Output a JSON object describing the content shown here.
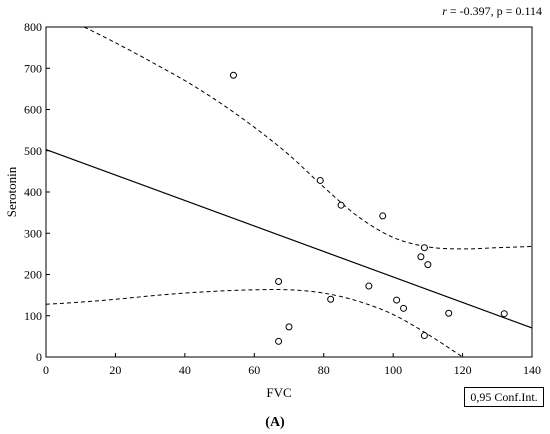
{
  "annotation": {
    "r_symbol": "r",
    "stat_text": " = -0.397, p = 0.114"
  },
  "legend_box": "0,95 Conf.Int.",
  "panel_label": "(A)",
  "chart_data": {
    "type": "scatter",
    "title": "",
    "xlabel": "FVC",
    "ylabel": "Serotonin",
    "xlim": [
      0,
      140
    ],
    "ylim": [
      0,
      800
    ],
    "xticks": [
      0,
      20,
      40,
      60,
      80,
      100,
      120,
      140
    ],
    "yticks": [
      0,
      100,
      200,
      300,
      400,
      500,
      600,
      700,
      800
    ],
    "grid": false,
    "points": [
      {
        "x": 54,
        "y": 683
      },
      {
        "x": 79,
        "y": 428
      },
      {
        "x": 85,
        "y": 368
      },
      {
        "x": 97,
        "y": 342
      },
      {
        "x": 109,
        "y": 265
      },
      {
        "x": 108,
        "y": 243
      },
      {
        "x": 110,
        "y": 224
      },
      {
        "x": 67,
        "y": 183
      },
      {
        "x": 93,
        "y": 172
      },
      {
        "x": 82,
        "y": 140
      },
      {
        "x": 101,
        "y": 138
      },
      {
        "x": 103,
        "y": 118
      },
      {
        "x": 116,
        "y": 106
      },
      {
        "x": 132,
        "y": 105
      },
      {
        "x": 70,
        "y": 73
      },
      {
        "x": 109,
        "y": 52
      },
      {
        "x": 67,
        "y": 38
      }
    ],
    "regression": {
      "intercept": 503,
      "slope": -3.09
    },
    "ci_upper": [
      {
        "x": 11,
        "y": 800
      },
      {
        "x": 20,
        "y": 762
      },
      {
        "x": 30,
        "y": 717
      },
      {
        "x": 40,
        "y": 670
      },
      {
        "x": 50,
        "y": 617
      },
      {
        "x": 60,
        "y": 557
      },
      {
        "x": 70,
        "y": 490
      },
      {
        "x": 80,
        "y": 412
      },
      {
        "x": 90,
        "y": 340
      },
      {
        "x": 100,
        "y": 290
      },
      {
        "x": 110,
        "y": 267
      },
      {
        "x": 120,
        "y": 262
      },
      {
        "x": 130,
        "y": 265
      },
      {
        "x": 140,
        "y": 268
      }
    ],
    "ci_lower": [
      {
        "x": 0,
        "y": 128
      },
      {
        "x": 10,
        "y": 133
      },
      {
        "x": 20,
        "y": 140
      },
      {
        "x": 30,
        "y": 148
      },
      {
        "x": 40,
        "y": 155
      },
      {
        "x": 50,
        "y": 160
      },
      {
        "x": 60,
        "y": 163
      },
      {
        "x": 70,
        "y": 163
      },
      {
        "x": 80,
        "y": 155
      },
      {
        "x": 90,
        "y": 135
      },
      {
        "x": 100,
        "y": 103
      },
      {
        "x": 110,
        "y": 55
      },
      {
        "x": 120,
        "y": 0
      }
    ]
  }
}
